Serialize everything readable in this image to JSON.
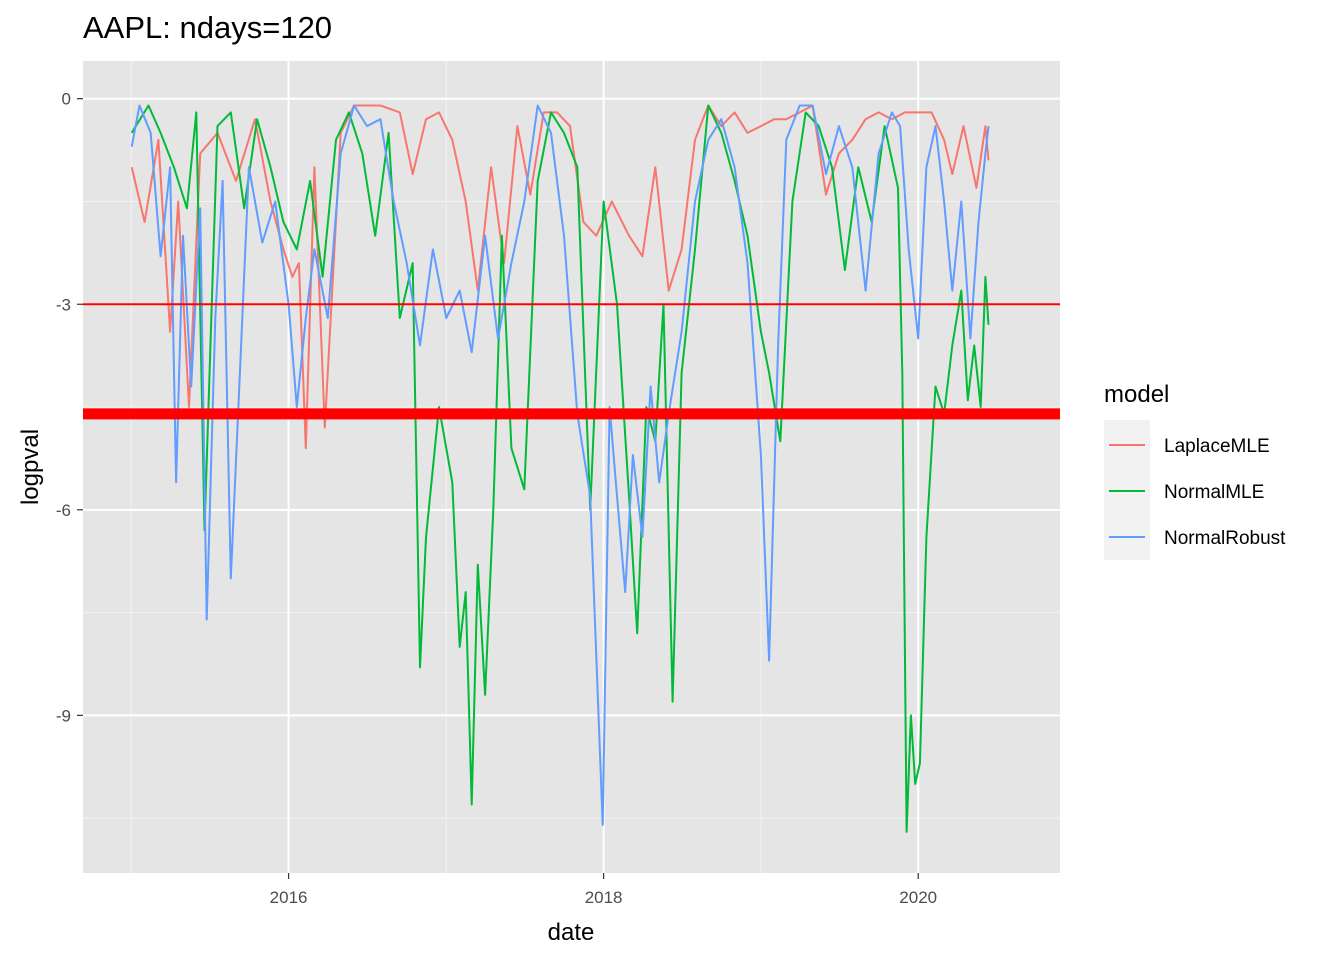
{
  "chart_data": {
    "type": "line",
    "title": "AAPL: ndays=120",
    "xlabel": "date",
    "ylabel": "logpval",
    "xlim": [
      "2014-09-11",
      "2020-11-25"
    ],
    "ylim": [
      -11.3,
      0.55
    ],
    "x_ticks": [
      "2016",
      "2018",
      "2020"
    ],
    "x_tick_dates": [
      "2016-01-01",
      "2018-01-01",
      "2020-01-01"
    ],
    "y_ticks": [
      0,
      -3,
      -6,
      -9
    ],
    "y_tick_labels": [
      "0",
      "-3",
      "-6",
      "-9"
    ],
    "grid": true,
    "panel_background": "#e5e5e5",
    "legend": {
      "title": "model",
      "position": "right"
    },
    "hlines": [
      {
        "y": -3.0,
        "color": "#ff0000",
        "style": "thin"
      },
      {
        "y": -4.6,
        "color": "#ff0000",
        "style": "thick"
      }
    ],
    "series": [
      {
        "name": "LaplaceMLE",
        "color": "#f8766d",
        "points": [
          [
            "2015-01-02",
            -1.0
          ],
          [
            "2015-02-01",
            -1.8
          ],
          [
            "2015-03-05",
            -0.6
          ],
          [
            "2015-04-01",
            -3.4
          ],
          [
            "2015-04-20",
            -1.5
          ],
          [
            "2015-05-15",
            -4.5
          ],
          [
            "2015-06-10",
            -0.8
          ],
          [
            "2015-07-20",
            -0.5
          ],
          [
            "2015-09-01",
            -1.2
          ],
          [
            "2015-10-15",
            -0.3
          ],
          [
            "2015-11-20",
            -1.5
          ],
          [
            "2015-12-20",
            -2.2
          ],
          [
            "2016-01-10",
            -2.6
          ],
          [
            "2016-01-25",
            -2.4
          ],
          [
            "2016-02-10",
            -5.1
          ],
          [
            "2016-03-01",
            -1.0
          ],
          [
            "2016-03-25",
            -4.8
          ],
          [
            "2016-05-01",
            -0.5
          ],
          [
            "2016-06-01",
            -0.1
          ],
          [
            "2016-08-01",
            -0.1
          ],
          [
            "2016-09-15",
            -0.2
          ],
          [
            "2016-10-15",
            -1.1
          ],
          [
            "2016-11-15",
            -0.3
          ],
          [
            "2016-12-15",
            -0.2
          ],
          [
            "2017-01-15",
            -0.6
          ],
          [
            "2017-02-15",
            -1.5
          ],
          [
            "2017-03-15",
            -2.8
          ],
          [
            "2017-04-15",
            -1.0
          ],
          [
            "2017-05-15",
            -2.4
          ],
          [
            "2017-06-15",
            -0.4
          ],
          [
            "2017-07-15",
            -1.4
          ],
          [
            "2017-08-15",
            -0.2
          ],
          [
            "2017-09-15",
            -0.2
          ],
          [
            "2017-10-15",
            -0.4
          ],
          [
            "2017-11-15",
            -1.8
          ],
          [
            "2017-12-15",
            -2.0
          ],
          [
            "2018-01-20",
            -1.5
          ],
          [
            "2018-03-01",
            -2.0
          ],
          [
            "2018-04-01",
            -2.3
          ],
          [
            "2018-05-01",
            -1.0
          ],
          [
            "2018-06-01",
            -2.8
          ],
          [
            "2018-07-01",
            -2.2
          ],
          [
            "2018-08-01",
            -0.6
          ],
          [
            "2018-09-01",
            -0.1
          ],
          [
            "2018-10-01",
            -0.4
          ],
          [
            "2018-11-01",
            -0.2
          ],
          [
            "2018-12-01",
            -0.5
          ],
          [
            "2019-01-01",
            -0.4
          ],
          [
            "2019-02-01",
            -0.3
          ],
          [
            "2019-03-01",
            -0.3
          ],
          [
            "2019-04-01",
            -0.2
          ],
          [
            "2019-05-01",
            -0.1
          ],
          [
            "2019-06-01",
            -1.4
          ],
          [
            "2019-07-01",
            -0.8
          ],
          [
            "2019-08-01",
            -0.6
          ],
          [
            "2019-09-01",
            -0.3
          ],
          [
            "2019-10-01",
            -0.2
          ],
          [
            "2019-11-01",
            -0.3
          ],
          [
            "2019-12-01",
            -0.2
          ],
          [
            "2020-01-01",
            -0.2
          ],
          [
            "2020-02-01",
            -0.2
          ],
          [
            "2020-03-01",
            -0.6
          ],
          [
            "2020-03-20",
            -1.1
          ],
          [
            "2020-04-15",
            -0.4
          ],
          [
            "2020-05-15",
            -1.3
          ],
          [
            "2020-06-05",
            -0.4
          ],
          [
            "2020-06-12",
            -0.9
          ]
        ]
      },
      {
        "name": "NormalMLE",
        "color": "#00ba38",
        "points": [
          [
            "2015-01-02",
            -0.5
          ],
          [
            "2015-02-10",
            -0.1
          ],
          [
            "2015-03-10",
            -0.5
          ],
          [
            "2015-04-10",
            -1.0
          ],
          [
            "2015-05-10",
            -1.6
          ],
          [
            "2015-06-01",
            -0.2
          ],
          [
            "2015-06-20",
            -6.3
          ],
          [
            "2015-07-20",
            -0.4
          ],
          [
            "2015-08-20",
            -0.2
          ],
          [
            "2015-09-20",
            -1.6
          ],
          [
            "2015-10-20",
            -0.3
          ],
          [
            "2015-11-20",
            -1.0
          ],
          [
            "2015-12-20",
            -1.8
          ],
          [
            "2016-01-20",
            -2.2
          ],
          [
            "2016-02-20",
            -1.2
          ],
          [
            "2016-03-20",
            -2.6
          ],
          [
            "2016-04-20",
            -0.6
          ],
          [
            "2016-05-20",
            -0.2
          ],
          [
            "2016-06-20",
            -0.8
          ],
          [
            "2016-07-20",
            -2.0
          ],
          [
            "2016-08-20",
            -0.5
          ],
          [
            "2016-09-15",
            -3.2
          ],
          [
            "2016-10-15",
            -2.4
          ],
          [
            "2016-11-01",
            -8.3
          ],
          [
            "2016-11-15",
            -6.4
          ],
          [
            "2016-12-15",
            -4.5
          ],
          [
            "2017-01-15",
            -5.6
          ],
          [
            "2017-02-01",
            -8.0
          ],
          [
            "2017-02-15",
            -7.2
          ],
          [
            "2017-03-01",
            -10.3
          ],
          [
            "2017-03-15",
            -6.8
          ],
          [
            "2017-04-01",
            -8.7
          ],
          [
            "2017-04-20",
            -6.0
          ],
          [
            "2017-05-10",
            -2.0
          ],
          [
            "2017-06-01",
            -5.1
          ],
          [
            "2017-07-01",
            -5.7
          ],
          [
            "2017-08-01",
            -1.2
          ],
          [
            "2017-09-01",
            -0.2
          ],
          [
            "2017-10-01",
            -0.5
          ],
          [
            "2017-11-01",
            -1.0
          ],
          [
            "2017-12-01",
            -6.0
          ],
          [
            "2018-01-01",
            -1.5
          ],
          [
            "2018-02-01",
            -3.0
          ],
          [
            "2018-03-01",
            -5.8
          ],
          [
            "2018-03-20",
            -7.8
          ],
          [
            "2018-04-10",
            -4.5
          ],
          [
            "2018-05-01",
            -5.0
          ],
          [
            "2018-05-20",
            -3.0
          ],
          [
            "2018-06-10",
            -8.8
          ],
          [
            "2018-07-01",
            -4.0
          ],
          [
            "2018-08-01",
            -2.2
          ],
          [
            "2018-09-01",
            -0.1
          ],
          [
            "2018-10-01",
            -0.5
          ],
          [
            "2018-11-01",
            -1.2
          ],
          [
            "2018-12-01",
            -2.0
          ],
          [
            "2019-01-01",
            -3.4
          ],
          [
            "2019-01-20",
            -4.0
          ],
          [
            "2019-02-15",
            -5.0
          ],
          [
            "2019-03-15",
            -1.5
          ],
          [
            "2019-04-15",
            -0.2
          ],
          [
            "2019-05-15",
            -0.4
          ],
          [
            "2019-06-15",
            -1.0
          ],
          [
            "2019-07-15",
            -2.5
          ],
          [
            "2019-08-15",
            -1.0
          ],
          [
            "2019-09-15",
            -1.8
          ],
          [
            "2019-10-15",
            -0.4
          ],
          [
            "2019-11-15",
            -1.3
          ],
          [
            "2019-11-25",
            -4.0
          ],
          [
            "2019-12-05",
            -10.7
          ],
          [
            "2019-12-15",
            -9.0
          ],
          [
            "2019-12-25",
            -10.0
          ],
          [
            "2020-01-05",
            -9.7
          ],
          [
            "2020-01-20",
            -6.4
          ],
          [
            "2020-02-10",
            -4.2
          ],
          [
            "2020-03-01",
            -4.6
          ],
          [
            "2020-03-20",
            -3.6
          ],
          [
            "2020-04-10",
            -2.8
          ],
          [
            "2020-04-25",
            -4.4
          ],
          [
            "2020-05-10",
            -3.6
          ],
          [
            "2020-05-25",
            -4.5
          ],
          [
            "2020-06-05",
            -2.6
          ],
          [
            "2020-06-12",
            -3.3
          ]
        ]
      },
      {
        "name": "NormalRobust",
        "color": "#619cff",
        "points": [
          [
            "2015-01-02",
            -0.7
          ],
          [
            "2015-01-20",
            -0.1
          ],
          [
            "2015-02-15",
            -0.5
          ],
          [
            "2015-03-10",
            -2.3
          ],
          [
            "2015-04-01",
            -1.0
          ],
          [
            "2015-04-15",
            -5.6
          ],
          [
            "2015-05-01",
            -2.0
          ],
          [
            "2015-05-20",
            -4.2
          ],
          [
            "2015-06-10",
            -1.6
          ],
          [
            "2015-06-25",
            -7.6
          ],
          [
            "2015-07-15",
            -3.2
          ],
          [
            "2015-08-01",
            -1.2
          ],
          [
            "2015-08-20",
            -7.0
          ],
          [
            "2015-09-10",
            -4.0
          ],
          [
            "2015-10-01",
            -1.0
          ],
          [
            "2015-11-01",
            -2.1
          ],
          [
            "2015-12-01",
            -1.5
          ],
          [
            "2016-01-01",
            -3.0
          ],
          [
            "2016-01-20",
            -4.5
          ],
          [
            "2016-02-10",
            -3.2
          ],
          [
            "2016-03-01",
            -2.2
          ],
          [
            "2016-04-01",
            -3.2
          ],
          [
            "2016-05-01",
            -0.8
          ],
          [
            "2016-06-01",
            -0.1
          ],
          [
            "2016-07-01",
            -0.4
          ],
          [
            "2016-08-01",
            -0.3
          ],
          [
            "2016-09-01",
            -1.5
          ],
          [
            "2016-10-01",
            -2.4
          ],
          [
            "2016-11-01",
            -3.6
          ],
          [
            "2016-12-01",
            -2.2
          ],
          [
            "2017-01-01",
            -3.2
          ],
          [
            "2017-02-01",
            -2.8
          ],
          [
            "2017-03-01",
            -3.7
          ],
          [
            "2017-04-01",
            -2.0
          ],
          [
            "2017-05-01",
            -3.5
          ],
          [
            "2017-06-01",
            -2.4
          ],
          [
            "2017-07-01",
            -1.5
          ],
          [
            "2017-08-01",
            -0.1
          ],
          [
            "2017-09-01",
            -0.5
          ],
          [
            "2017-10-01",
            -2.0
          ],
          [
            "2017-11-01",
            -4.6
          ],
          [
            "2017-12-01",
            -5.8
          ],
          [
            "2017-12-30",
            -10.6
          ],
          [
            "2018-01-15",
            -4.5
          ],
          [
            "2018-02-01",
            -5.8
          ],
          [
            "2018-02-20",
            -7.2
          ],
          [
            "2018-03-10",
            -5.2
          ],
          [
            "2018-04-01",
            -6.4
          ],
          [
            "2018-04-20",
            -4.2
          ],
          [
            "2018-05-10",
            -5.6
          ],
          [
            "2018-06-01",
            -4.6
          ],
          [
            "2018-07-01",
            -3.4
          ],
          [
            "2018-08-01",
            -1.5
          ],
          [
            "2018-09-01",
            -0.6
          ],
          [
            "2018-10-01",
            -0.3
          ],
          [
            "2018-11-01",
            -1.0
          ],
          [
            "2018-12-01",
            -2.4
          ],
          [
            "2019-01-01",
            -5.2
          ],
          [
            "2019-01-20",
            -8.2
          ],
          [
            "2019-02-10",
            -3.6
          ],
          [
            "2019-03-01",
            -0.6
          ],
          [
            "2019-04-01",
            -0.1
          ],
          [
            "2019-05-01",
            -0.1
          ],
          [
            "2019-06-01",
            -1.1
          ],
          [
            "2019-07-01",
            -0.4
          ],
          [
            "2019-08-01",
            -1.0
          ],
          [
            "2019-09-01",
            -2.8
          ],
          [
            "2019-10-01",
            -0.8
          ],
          [
            "2019-11-01",
            -0.2
          ],
          [
            "2019-11-20",
            -0.4
          ],
          [
            "2019-12-10",
            -2.2
          ],
          [
            "2020-01-01",
            -3.5
          ],
          [
            "2020-01-20",
            -1.0
          ],
          [
            "2020-02-10",
            -0.4
          ],
          [
            "2020-03-01",
            -1.5
          ],
          [
            "2020-03-20",
            -2.8
          ],
          [
            "2020-04-10",
            -1.5
          ],
          [
            "2020-05-01",
            -3.5
          ],
          [
            "2020-05-20",
            -1.8
          ],
          [
            "2020-06-05",
            -0.8
          ],
          [
            "2020-06-12",
            -0.4
          ]
        ]
      }
    ]
  }
}
